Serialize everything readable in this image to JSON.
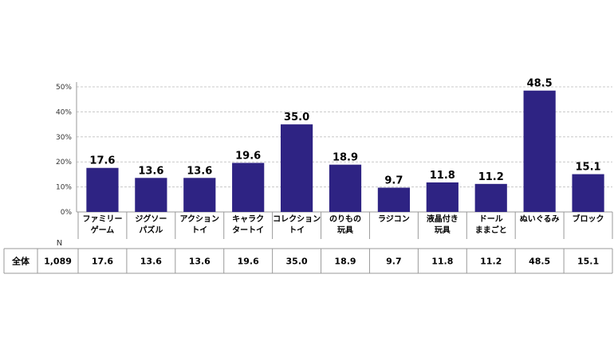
{
  "chart_data": {
    "type": "bar",
    "categories": [
      [
        "ファミリー",
        "ゲーム"
      ],
      [
        "ジグソー",
        "パズル"
      ],
      [
        "アクション",
        "トイ"
      ],
      [
        "キャラク",
        "タートイ"
      ],
      [
        "コレクション",
        "トイ"
      ],
      [
        "のりもの",
        "玩具"
      ],
      [
        "ラジコン"
      ],
      [
        "液晶付き",
        "玩具"
      ],
      [
        "ドール",
        "ままごと"
      ],
      [
        "ぬいぐるみ"
      ],
      [
        "ブロック"
      ]
    ],
    "series": [
      {
        "values": [
          17.6,
          13.6,
          13.6,
          19.6,
          35.0,
          18.9,
          9.7,
          11.8,
          11.2,
          48.5,
          15.1
        ]
      }
    ],
    "value_labels": [
      "17.6",
      "13.6",
      "13.6",
      "19.6",
      "35.0",
      "18.9",
      "9.7",
      "11.8",
      "11.2",
      "48.5",
      "15.1"
    ],
    "yticks": [
      "0%",
      "10%",
      "20%",
      "30%",
      "40%",
      "50%"
    ],
    "ylim": [
      0,
      50
    ],
    "grid": true,
    "bar_color": "#2e2383"
  },
  "table": {
    "n_header": "N",
    "row_label": "全体",
    "n_value": "1,089",
    "values": [
      "17.6",
      "13.6",
      "13.6",
      "19.6",
      "35.0",
      "18.9",
      "9.7",
      "11.8",
      "11.2",
      "48.5",
      "15.1"
    ]
  }
}
